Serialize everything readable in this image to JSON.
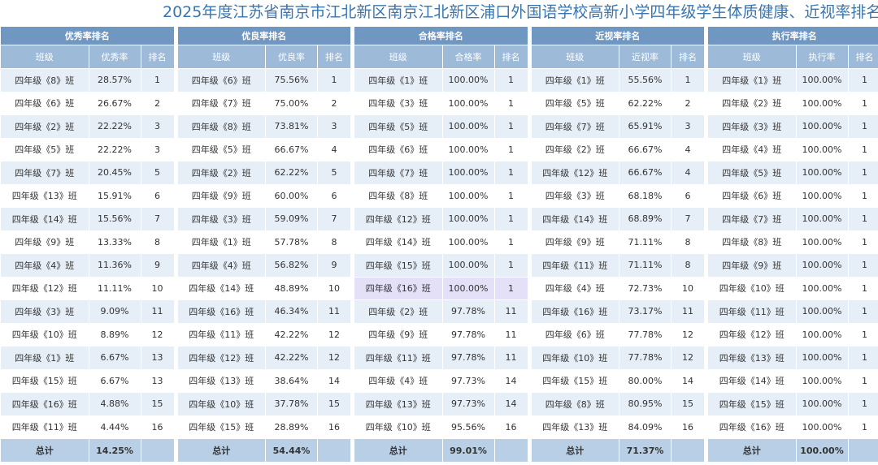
{
  "title": "2025年度江苏省南京市江北新区南京江北新区浦口外国语学校高新小学四年级学生体质健康、近视率排名",
  "total_label": "总计",
  "tables": [
    {
      "caption": "优秀率排名",
      "headers": [
        "班级",
        "优秀率",
        "排名"
      ],
      "rows": [
        [
          "四年级《8》班",
          "28.57%",
          "1"
        ],
        [
          "四年级《6》班",
          "26.67%",
          "2"
        ],
        [
          "四年级《2》班",
          "22.22%",
          "3"
        ],
        [
          "四年级《5》班",
          "22.22%",
          "3"
        ],
        [
          "四年级《7》班",
          "20.45%",
          "5"
        ],
        [
          "四年级《13》班",
          "15.91%",
          "6"
        ],
        [
          "四年级《14》班",
          "15.56%",
          "7"
        ],
        [
          "四年级《9》班",
          "13.33%",
          "8"
        ],
        [
          "四年级《4》班",
          "11.36%",
          "9"
        ],
        [
          "四年级《12》班",
          "11.11%",
          "10"
        ],
        [
          "四年级《3》班",
          "9.09%",
          "11"
        ],
        [
          "四年级《10》班",
          "8.89%",
          "12"
        ],
        [
          "四年级《1》班",
          "6.67%",
          "13"
        ],
        [
          "四年级《15》班",
          "6.67%",
          "13"
        ],
        [
          "四年级《16》班",
          "4.88%",
          "15"
        ],
        [
          "四年级《11》班",
          "4.44%",
          "16"
        ]
      ],
      "total": "14.25%"
    },
    {
      "caption": "优良率排名",
      "headers": [
        "班级",
        "优良率",
        "排名"
      ],
      "rows": [
        [
          "四年级《6》班",
          "75.56%",
          "1"
        ],
        [
          "四年级《7》班",
          "75.00%",
          "2"
        ],
        [
          "四年级《8》班",
          "73.81%",
          "3"
        ],
        [
          "四年级《5》班",
          "66.67%",
          "4"
        ],
        [
          "四年级《2》班",
          "62.22%",
          "5"
        ],
        [
          "四年级《9》班",
          "60.00%",
          "6"
        ],
        [
          "四年级《3》班",
          "59.09%",
          "7"
        ],
        [
          "四年级《1》班",
          "57.78%",
          "8"
        ],
        [
          "四年级《4》班",
          "56.82%",
          "9"
        ],
        [
          "四年级《14》班",
          "48.89%",
          "10"
        ],
        [
          "四年级《16》班",
          "46.34%",
          "11"
        ],
        [
          "四年级《11》班",
          "42.22%",
          "12"
        ],
        [
          "四年级《12》班",
          "42.22%",
          "12"
        ],
        [
          "四年级《13》班",
          "38.64%",
          "14"
        ],
        [
          "四年级《10》班",
          "37.78%",
          "15"
        ],
        [
          "四年级《15》班",
          "28.89%",
          "16"
        ]
      ],
      "total": "54.44%"
    },
    {
      "caption": "合格率排名",
      "headers": [
        "班级",
        "合格率",
        "排名"
      ],
      "rows": [
        [
          "四年级《1》班",
          "100.00%",
          "1"
        ],
        [
          "四年级《3》班",
          "100.00%",
          "1"
        ],
        [
          "四年级《5》班",
          "100.00%",
          "1"
        ],
        [
          "四年级《6》班",
          "100.00%",
          "1"
        ],
        [
          "四年级《7》班",
          "100.00%",
          "1"
        ],
        [
          "四年级《8》班",
          "100.00%",
          "1"
        ],
        [
          "四年级《12》班",
          "100.00%",
          "1"
        ],
        [
          "四年级《14》班",
          "100.00%",
          "1"
        ],
        [
          "四年级《15》班",
          "100.00%",
          "1"
        ],
        [
          "四年级《16》班",
          "100.00%",
          "1"
        ],
        [
          "四年级《2》班",
          "97.78%",
          "11"
        ],
        [
          "四年级《9》班",
          "97.78%",
          "11"
        ],
        [
          "四年级《11》班",
          "97.78%",
          "11"
        ],
        [
          "四年级《4》班",
          "97.73%",
          "14"
        ],
        [
          "四年级《13》班",
          "97.73%",
          "14"
        ],
        [
          "四年级《10》班",
          "95.56%",
          "16"
        ]
      ],
      "total": "99.01%",
      "highlight_row": 9
    },
    {
      "caption": "近视率排名",
      "headers": [
        "班级",
        "近视率",
        "排名"
      ],
      "rows": [
        [
          "四年级《1》班",
          "55.56%",
          "1"
        ],
        [
          "四年级《5》班",
          "62.22%",
          "2"
        ],
        [
          "四年级《7》班",
          "65.91%",
          "3"
        ],
        [
          "四年级《2》班",
          "66.67%",
          "4"
        ],
        [
          "四年级《12》班",
          "66.67%",
          "4"
        ],
        [
          "四年级《3》班",
          "68.18%",
          "6"
        ],
        [
          "四年级《14》班",
          "68.89%",
          "7"
        ],
        [
          "四年级《9》班",
          "71.11%",
          "8"
        ],
        [
          "四年级《11》班",
          "71.11%",
          "8"
        ],
        [
          "四年级《4》班",
          "72.73%",
          "10"
        ],
        [
          "四年级《16》班",
          "73.17%",
          "11"
        ],
        [
          "四年级《6》班",
          "77.78%",
          "12"
        ],
        [
          "四年级《10》班",
          "77.78%",
          "12"
        ],
        [
          "四年级《15》班",
          "80.00%",
          "14"
        ],
        [
          "四年级《8》班",
          "80.95%",
          "15"
        ],
        [
          "四年级《13》班",
          "84.09%",
          "16"
        ]
      ],
      "total": "71.37%"
    },
    {
      "caption": "执行率排名",
      "headers": [
        "班级",
        "执行率",
        "排名"
      ],
      "rows": [
        [
          "四年级《1》班",
          "100.00%",
          "1"
        ],
        [
          "四年级《2》班",
          "100.00%",
          "1"
        ],
        [
          "四年级《3》班",
          "100.00%",
          "1"
        ],
        [
          "四年级《4》班",
          "100.00%",
          "1"
        ],
        [
          "四年级《5》班",
          "100.00%",
          "1"
        ],
        [
          "四年级《6》班",
          "100.00%",
          "1"
        ],
        [
          "四年级《7》班",
          "100.00%",
          "1"
        ],
        [
          "四年级《8》班",
          "100.00%",
          "1"
        ],
        [
          "四年级《9》班",
          "100.00%",
          "1"
        ],
        [
          "四年级《10》班",
          "100.00%",
          "1"
        ],
        [
          "四年级《11》班",
          "100.00%",
          "1"
        ],
        [
          "四年级《12》班",
          "100.00%",
          "1"
        ],
        [
          "四年级《13》班",
          "100.00%",
          "1"
        ],
        [
          "四年级《14》班",
          "100.00%",
          "1"
        ],
        [
          "四年级《15》班",
          "100.00%",
          "1"
        ],
        [
          "四年级《16》班",
          "100.00%",
          "1"
        ]
      ],
      "total": "100.00%"
    }
  ]
}
